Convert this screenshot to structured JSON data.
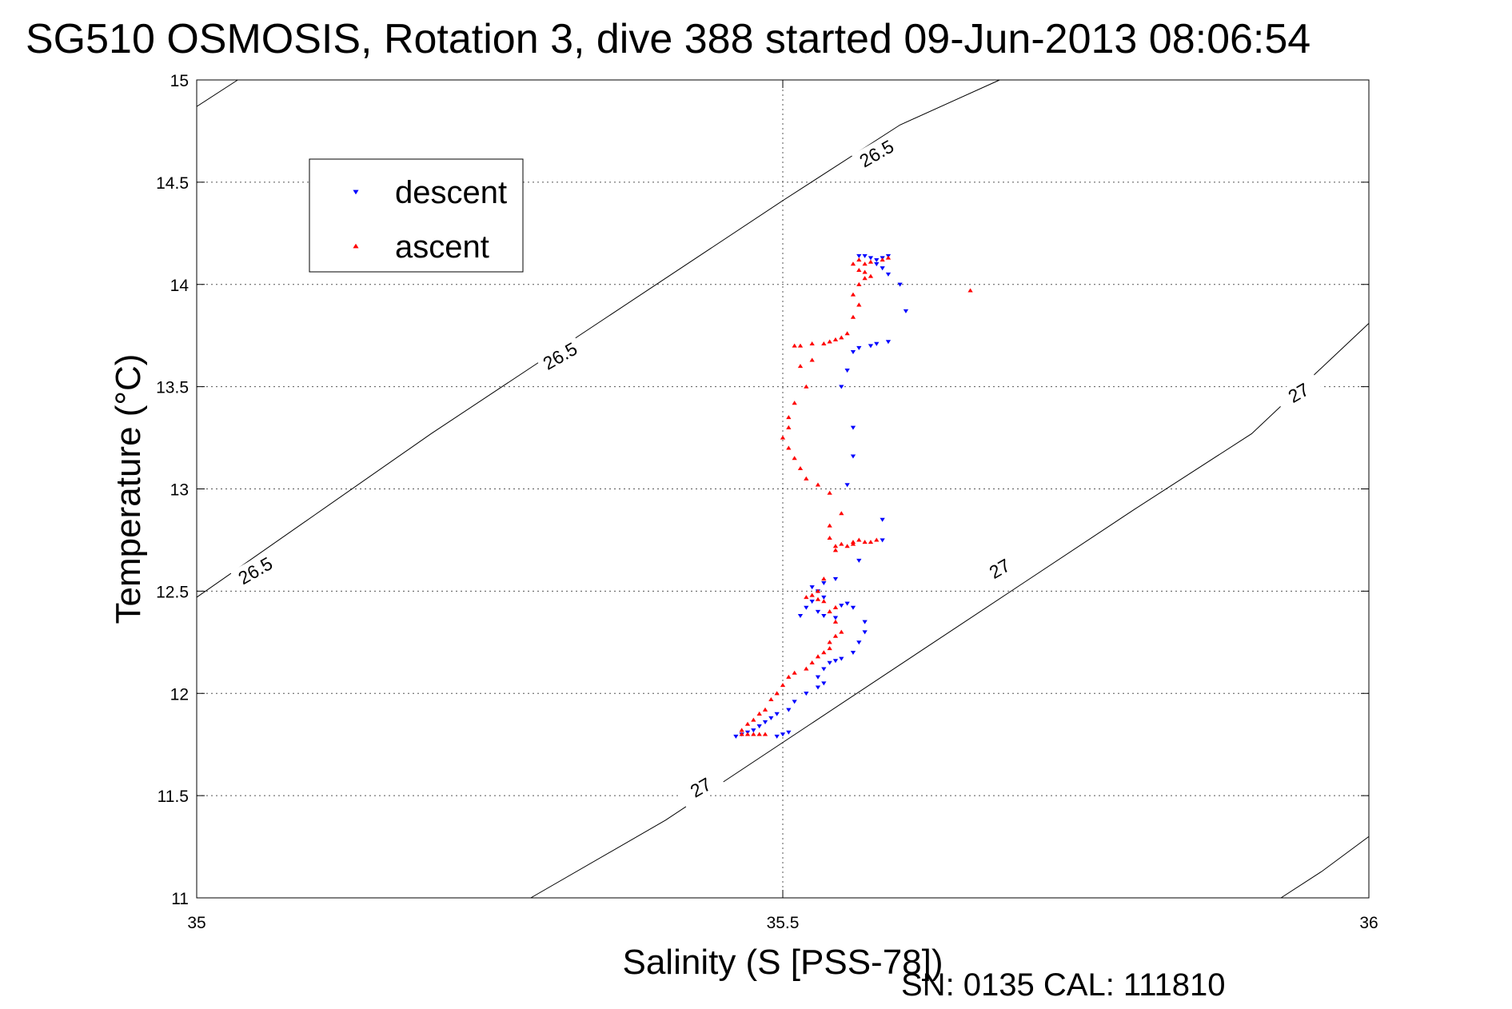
{
  "chart_data": {
    "type": "scatter",
    "title": "SG510 OSMOSIS, Rotation 3, dive 388 started 09-Jun-2013 08:06:54",
    "xlabel": "Salinity (S [PSS-78])",
    "ylabel": "Temperature (°C)",
    "xlim": [
      35,
      36
    ],
    "ylim": [
      11,
      15
    ],
    "xticks": [
      35,
      35.5,
      36
    ],
    "xtick_labels": [
      "35",
      "35.5",
      "36"
    ],
    "yticks": [
      11,
      11.5,
      12,
      12.5,
      13,
      13.5,
      14,
      14.5,
      15
    ],
    "ytick_labels": [
      "11",
      "11.5",
      "12",
      "12.5",
      "13",
      "13.5",
      "14",
      "14.5",
      "15"
    ],
    "grid": true,
    "legend_position": "upper-left",
    "footer": "SN: 0135  CAL: 111810",
    "contours": [
      {
        "label": "26.5",
        "points": [
          [
            35.0,
            14.87
          ],
          [
            35.035,
            15.0
          ]
        ],
        "label_positions": []
      },
      {
        "label": "26.5",
        "points": [
          [
            35.0,
            12.47
          ],
          [
            35.1,
            12.87
          ],
          [
            35.2,
            13.27
          ],
          [
            35.3,
            13.65
          ],
          [
            35.4,
            14.03
          ],
          [
            35.5,
            14.41
          ],
          [
            35.6,
            14.78
          ],
          [
            35.685,
            15.0
          ]
        ],
        "label_positions": [
          [
            35.05,
            12.6,
            30
          ],
          [
            35.31,
            13.65,
            30
          ],
          [
            35.58,
            14.64,
            30
          ]
        ]
      },
      {
        "label": "27",
        "points": [
          [
            35.285,
            11.0
          ],
          [
            35.4,
            11.38
          ],
          [
            35.5,
            11.76
          ],
          [
            35.6,
            12.14
          ],
          [
            35.7,
            12.52
          ],
          [
            35.8,
            12.9
          ],
          [
            35.9,
            13.27
          ],
          [
            36.0,
            13.81
          ]
        ],
        "label_positions": [
          [
            35.43,
            11.54,
            30
          ],
          [
            35.685,
            12.61,
            30
          ],
          [
            35.94,
            13.47,
            30
          ]
        ]
      },
      {
        "label": "27",
        "points": [
          [
            35.925,
            11.0
          ],
          [
            35.96,
            11.13
          ],
          [
            36.0,
            11.3
          ]
        ],
        "label_positions": []
      }
    ],
    "series": [
      {
        "name": "descent",
        "color": "#0000ff",
        "marker": "down-triangle",
        "points": [
          [
            35.565,
            14.14
          ],
          [
            35.57,
            14.14
          ],
          [
            35.575,
            14.13
          ],
          [
            35.58,
            14.12
          ],
          [
            35.585,
            14.13
          ],
          [
            35.59,
            14.14
          ],
          [
            35.58,
            14.1
          ],
          [
            35.585,
            14.08
          ],
          [
            35.59,
            14.05
          ],
          [
            35.6,
            14.0
          ],
          [
            35.605,
            13.87
          ],
          [
            35.59,
            13.72
          ],
          [
            35.58,
            13.71
          ],
          [
            35.575,
            13.7
          ],
          [
            35.565,
            13.69
          ],
          [
            35.56,
            13.67
          ],
          [
            35.555,
            13.58
          ],
          [
            35.55,
            13.5
          ],
          [
            35.56,
            13.3
          ],
          [
            35.56,
            13.16
          ],
          [
            35.555,
            13.02
          ],
          [
            35.585,
            12.85
          ],
          [
            35.585,
            12.75
          ],
          [
            35.565,
            12.65
          ],
          [
            35.545,
            12.56
          ],
          [
            35.535,
            12.54
          ],
          [
            35.525,
            12.52
          ],
          [
            35.53,
            12.5
          ],
          [
            35.535,
            12.47
          ],
          [
            35.525,
            12.45
          ],
          [
            35.52,
            12.42
          ],
          [
            35.53,
            12.4
          ],
          [
            35.535,
            12.38
          ],
          [
            35.515,
            12.38
          ],
          [
            35.545,
            12.37
          ],
          [
            35.55,
            12.43
          ],
          [
            35.555,
            12.44
          ],
          [
            35.56,
            12.42
          ],
          [
            35.57,
            12.35
          ],
          [
            35.57,
            12.3
          ],
          [
            35.565,
            12.25
          ],
          [
            35.56,
            12.2
          ],
          [
            35.55,
            12.17
          ],
          [
            35.545,
            12.16
          ],
          [
            35.54,
            12.15
          ],
          [
            35.535,
            12.12
          ],
          [
            35.53,
            12.08
          ],
          [
            35.535,
            12.05
          ],
          [
            35.53,
            12.03
          ],
          [
            35.52,
            12.0
          ],
          [
            35.51,
            11.96
          ],
          [
            35.505,
            11.92
          ],
          [
            35.495,
            11.9
          ],
          [
            35.49,
            11.88
          ],
          [
            35.485,
            11.86
          ],
          [
            35.48,
            11.84
          ],
          [
            35.475,
            11.82
          ],
          [
            35.47,
            11.81
          ],
          [
            35.465,
            11.8
          ],
          [
            35.46,
            11.79
          ],
          [
            35.5,
            11.8
          ],
          [
            35.505,
            11.81
          ],
          [
            35.495,
            11.79
          ]
        ]
      },
      {
        "name": "ascent",
        "color": "#ff0000",
        "marker": "up-triangle",
        "points": [
          [
            35.59,
            14.13
          ],
          [
            35.585,
            14.12
          ],
          [
            35.575,
            14.11
          ],
          [
            35.57,
            14.1
          ],
          [
            35.565,
            14.12
          ],
          [
            35.56,
            14.1
          ],
          [
            35.565,
            14.07
          ],
          [
            35.57,
            14.06
          ],
          [
            35.575,
            14.04
          ],
          [
            35.57,
            14.03
          ],
          [
            35.565,
            14.0
          ],
          [
            35.56,
            13.95
          ],
          [
            35.565,
            13.9
          ],
          [
            35.56,
            13.84
          ],
          [
            35.555,
            13.76
          ],
          [
            35.55,
            13.74
          ],
          [
            35.545,
            13.73
          ],
          [
            35.54,
            13.72
          ],
          [
            35.535,
            13.71
          ],
          [
            35.525,
            13.71
          ],
          [
            35.515,
            13.7
          ],
          [
            35.51,
            13.7
          ],
          [
            35.525,
            13.63
          ],
          [
            35.515,
            13.6
          ],
          [
            35.52,
            13.5
          ],
          [
            35.51,
            13.42
          ],
          [
            35.505,
            13.35
          ],
          [
            35.505,
            13.3
          ],
          [
            35.5,
            13.25
          ],
          [
            35.505,
            13.2
          ],
          [
            35.51,
            13.15
          ],
          [
            35.515,
            13.1
          ],
          [
            35.52,
            13.05
          ],
          [
            35.53,
            13.02
          ],
          [
            35.54,
            12.98
          ],
          [
            35.55,
            12.88
          ],
          [
            35.54,
            12.82
          ],
          [
            35.54,
            12.76
          ],
          [
            35.545,
            12.72
          ],
          [
            35.55,
            12.73
          ],
          [
            35.56,
            12.74
          ],
          [
            35.565,
            12.75
          ],
          [
            35.57,
            12.74
          ],
          [
            35.575,
            12.74
          ],
          [
            35.58,
            12.75
          ],
          [
            35.56,
            12.73
          ],
          [
            35.555,
            12.72
          ],
          [
            35.545,
            12.7
          ],
          [
            35.535,
            12.56
          ],
          [
            35.53,
            12.5
          ],
          [
            35.525,
            12.48
          ],
          [
            35.52,
            12.47
          ],
          [
            35.53,
            12.46
          ],
          [
            35.535,
            12.45
          ],
          [
            35.545,
            12.42
          ],
          [
            35.54,
            12.4
          ],
          [
            35.545,
            12.35
          ],
          [
            35.55,
            12.3
          ],
          [
            35.545,
            12.28
          ],
          [
            35.54,
            12.25
          ],
          [
            35.54,
            12.22
          ],
          [
            35.535,
            12.2
          ],
          [
            35.53,
            12.18
          ],
          [
            35.525,
            12.15
          ],
          [
            35.52,
            12.12
          ],
          [
            35.51,
            12.1
          ],
          [
            35.505,
            12.08
          ],
          [
            35.5,
            12.04
          ],
          [
            35.495,
            12.0
          ],
          [
            35.49,
            11.97
          ],
          [
            35.485,
            11.92
          ],
          [
            35.48,
            11.9
          ],
          [
            35.475,
            11.87
          ],
          [
            35.47,
            11.85
          ],
          [
            35.465,
            11.82
          ],
          [
            35.465,
            11.8
          ],
          [
            35.47,
            11.8
          ],
          [
            35.475,
            11.8
          ],
          [
            35.48,
            11.8
          ],
          [
            35.485,
            11.8
          ],
          [
            35.66,
            13.97
          ]
        ]
      }
    ]
  }
}
